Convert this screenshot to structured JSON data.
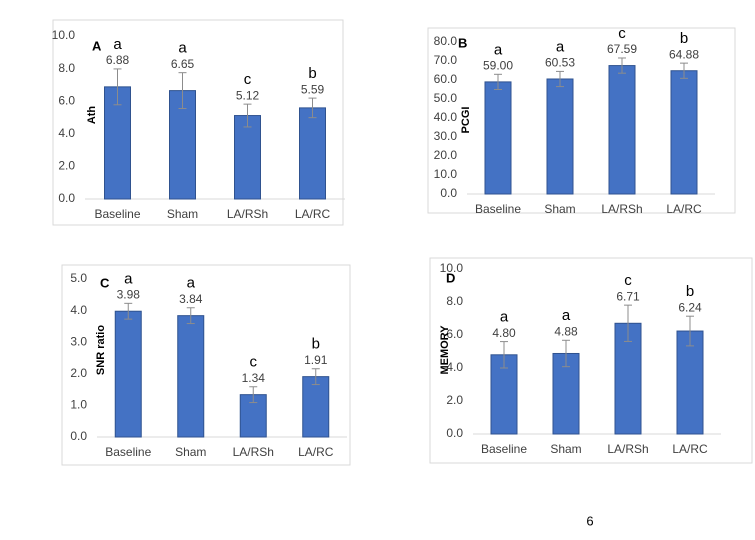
{
  "chart_data": [
    {
      "type": "bar",
      "panel": "A",
      "ylabel": "Ath",
      "categories": [
        "Baseline",
        "Sham",
        "LA/RSh",
        "LA/RC"
      ],
      "values": [
        6.88,
        6.65,
        5.12,
        5.59
      ],
      "errors": [
        1.1,
        1.1,
        0.7,
        0.6
      ],
      "letters": [
        "a",
        "a",
        "c",
        "b"
      ],
      "color": "#4472c4",
      "ylim": [
        0,
        10
      ],
      "yticks": [
        {
          "value": 0,
          "label": "0.0"
        },
        {
          "value": 2,
          "label": "2.0"
        },
        {
          "value": 4,
          "label": "4.0"
        },
        {
          "value": 6,
          "label": "6.0"
        },
        {
          "value": 8,
          "label": "8.0"
        },
        {
          "value": 10,
          "label": "10.0"
        }
      ]
    },
    {
      "type": "bar",
      "panel": "B",
      "ylabel": "PCGI",
      "categories": [
        "Baseline",
        "Sham",
        "LA/RSh",
        "LA/RC"
      ],
      "values": [
        59,
        60.53,
        67.59,
        64.88
      ],
      "value_labels": [
        "59.00",
        "60.53",
        "67.59",
        "64.88"
      ],
      "errors": [
        4,
        4,
        4,
        4
      ],
      "letters": [
        "a",
        "a",
        "c",
        "b"
      ],
      "color": "#4472c4",
      "ylim": [
        0,
        80
      ],
      "yticks": [
        {
          "value": 0,
          "label": "0.0"
        },
        {
          "value": 10,
          "label": "10.0"
        },
        {
          "value": 20,
          "label": "20.0"
        },
        {
          "value": 30,
          "label": "30.0"
        },
        {
          "value": 40,
          "label": "40.0"
        },
        {
          "value": 50,
          "label": "50.0"
        },
        {
          "value": 60,
          "label": "60.0"
        },
        {
          "value": 70,
          "label": "70.0"
        },
        {
          "value": 80,
          "label": "80.0"
        }
      ]
    },
    {
      "type": "bar",
      "panel": "C",
      "ylabel": "SNR ratio",
      "categories": [
        "Baseline",
        "Sham",
        "LA/RSh",
        "LA/RC"
      ],
      "values": [
        3.98,
        3.84,
        1.34,
        1.91
      ],
      "errors": [
        0.25,
        0.25,
        0.25,
        0.25
      ],
      "letters": [
        "a",
        "a",
        "c",
        "b"
      ],
      "color": "#4472c4",
      "ylim": [
        0,
        5
      ],
      "yticks": [
        {
          "value": 0,
          "label": "0.0"
        },
        {
          "value": 1,
          "label": "1.0"
        },
        {
          "value": 2,
          "label": "2.0"
        },
        {
          "value": 3,
          "label": "3.0"
        },
        {
          "value": 4,
          "label": "4.0"
        },
        {
          "value": 5,
          "label": "5.0"
        }
      ]
    },
    {
      "type": "bar",
      "panel": "D",
      "ylabel": "MEMORY",
      "categories": [
        "Baseline",
        "Sham",
        "LA/RSh",
        "LA/RC"
      ],
      "values": [
        4.8,
        4.88,
        6.71,
        6.24
      ],
      "value_labels": [
        "4.80",
        "4.88",
        "6.71",
        "6.24"
      ],
      "errors": [
        0.8,
        0.8,
        1.1,
        0.9
      ],
      "letters": [
        "a",
        "a",
        "c",
        "b"
      ],
      "color": "#4472c4",
      "ylim": [
        0,
        10
      ],
      "yticks": [
        {
          "value": 0,
          "label": "0.0"
        },
        {
          "value": 2,
          "label": "2.0"
        },
        {
          "value": 4,
          "label": "4.0"
        },
        {
          "value": 6,
          "label": "6.0"
        },
        {
          "value": 8,
          "label": "8.0"
        },
        {
          "value": 10,
          "label": "10.0"
        }
      ]
    }
  ],
  "page_number": "6"
}
